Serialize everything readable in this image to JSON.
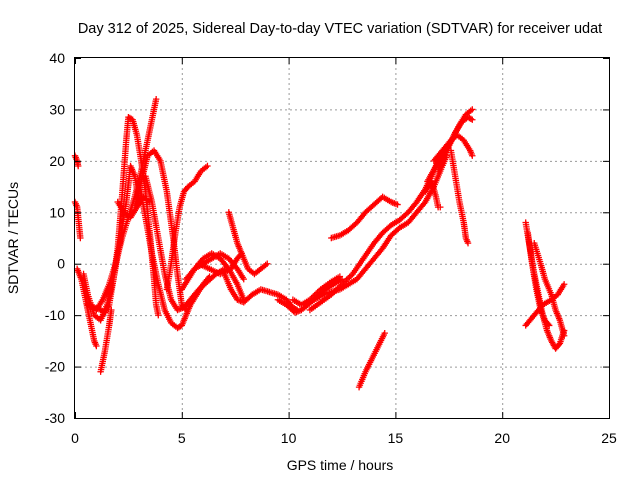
{
  "chart_data": {
    "type": "scatter",
    "title": "Day 312 of 2025, Sidereal Day-to-day VTEC variation (SDTVAR) for receiver udat",
    "xlabel": "GPS time / hours",
    "ylabel": "SDTVAR / TECUs",
    "xlim": [
      0,
      25
    ],
    "ylim": [
      -30,
      40
    ],
    "xticks": [
      "0",
      "5",
      "10",
      "15",
      "20",
      "25"
    ],
    "yticks": [
      "-30",
      "-20",
      "-10",
      "0",
      "10",
      "20",
      "30",
      "40"
    ],
    "grid": true,
    "marker": "+",
    "color": "#ff0000",
    "series": [
      {
        "points": [
          [
            0.0,
            21
          ],
          [
            0.1,
            20
          ],
          [
            0.15,
            19
          ]
        ]
      },
      {
        "points": [
          [
            0.0,
            12
          ],
          [
            0.1,
            11
          ],
          [
            0.15,
            9
          ],
          [
            0.2,
            7
          ],
          [
            0.25,
            5
          ]
        ]
      },
      {
        "points": [
          [
            0.1,
            -1
          ],
          [
            0.3,
            -3
          ],
          [
            0.5,
            -7
          ],
          [
            0.7,
            -11
          ],
          [
            0.9,
            -15
          ],
          [
            1.0,
            -16
          ]
        ]
      },
      {
        "points": [
          [
            0.4,
            -2
          ],
          [
            0.6,
            -6
          ],
          [
            0.9,
            -10
          ],
          [
            1.2,
            -11
          ],
          [
            1.5,
            -8
          ],
          [
            1.8,
            -3
          ],
          [
            2.1,
            4
          ],
          [
            2.4,
            12
          ],
          [
            2.6,
            19
          ],
          [
            2.8,
            17
          ],
          [
            3.0,
            12
          ]
        ]
      },
      {
        "points": [
          [
            0.6,
            -8
          ],
          [
            0.9,
            -8.5
          ],
          [
            1.2,
            -9
          ],
          [
            1.4,
            -9.5
          ],
          [
            1.6,
            -8
          ],
          [
            1.8,
            -3
          ],
          [
            2.0,
            3
          ],
          [
            2.2,
            13
          ],
          [
            2.4,
            24
          ],
          [
            2.5,
            28.5
          ],
          [
            2.7,
            28
          ],
          [
            2.9,
            25
          ],
          [
            3.1,
            20
          ],
          [
            3.3,
            14
          ],
          [
            3.5,
            6
          ],
          [
            3.7,
            -3
          ],
          [
            3.8,
            -8
          ],
          [
            3.9,
            -10
          ]
        ]
      },
      {
        "points": [
          [
            1.0,
            -9
          ],
          [
            1.3,
            -7
          ],
          [
            1.6,
            -4
          ],
          [
            1.9,
            0
          ],
          [
            2.2,
            5
          ],
          [
            2.5,
            9
          ],
          [
            2.8,
            13
          ],
          [
            3.1,
            18
          ],
          [
            3.3,
            22
          ],
          [
            3.5,
            26
          ],
          [
            3.7,
            30
          ],
          [
            3.8,
            32
          ]
        ]
      },
      {
        "points": [
          [
            1.2,
            -21
          ],
          [
            1.4,
            -17
          ],
          [
            1.6,
            -12
          ],
          [
            1.7,
            -9
          ]
        ]
      },
      {
        "points": [
          [
            2.0,
            12
          ],
          [
            2.3,
            10
          ],
          [
            2.6,
            9
          ],
          [
            2.9,
            11
          ],
          [
            3.2,
            13
          ],
          [
            3.5,
            12
          ]
        ]
      },
      {
        "points": [
          [
            2.8,
            11
          ],
          [
            3.1,
            16
          ],
          [
            3.4,
            21
          ],
          [
            3.7,
            22
          ],
          [
            4.0,
            20
          ],
          [
            4.3,
            14
          ],
          [
            4.6,
            5
          ],
          [
            4.8,
            -2
          ],
          [
            5.0,
            -8
          ],
          [
            5.2,
            -9
          ]
        ]
      },
      {
        "points": [
          [
            3.0,
            16
          ],
          [
            3.3,
            9
          ],
          [
            3.6,
            2
          ],
          [
            3.9,
            -4
          ],
          [
            4.2,
            -9
          ],
          [
            4.5,
            -11.5
          ],
          [
            4.8,
            -12.5
          ],
          [
            5.0,
            -12
          ],
          [
            5.2,
            -10
          ],
          [
            5.4,
            -8
          ],
          [
            5.7,
            -6
          ],
          [
            6.0,
            -4
          ],
          [
            6.3,
            -2.5
          ]
        ]
      },
      {
        "points": [
          [
            3.3,
            17
          ],
          [
            3.6,
            12
          ],
          [
            3.9,
            5
          ],
          [
            4.2,
            -2
          ],
          [
            4.5,
            -7
          ],
          [
            4.8,
            -9
          ],
          [
            5.1,
            -8.5
          ],
          [
            5.4,
            -7
          ],
          [
            5.8,
            -5
          ],
          [
            6.2,
            -3.5
          ],
          [
            6.6,
            -2
          ],
          [
            7.0,
            -1
          ]
        ]
      },
      {
        "points": [
          [
            4.3,
            -5
          ],
          [
            4.5,
            0
          ],
          [
            4.7,
            6
          ],
          [
            4.9,
            11
          ],
          [
            5.1,
            14
          ],
          [
            5.3,
            15
          ],
          [
            5.6,
            16
          ],
          [
            5.9,
            18
          ],
          [
            6.2,
            19
          ]
        ]
      },
      {
        "points": [
          [
            5.0,
            -5
          ],
          [
            5.3,
            -3
          ],
          [
            5.6,
            -1
          ],
          [
            6.0,
            0
          ],
          [
            6.4,
            1
          ],
          [
            6.8,
            2
          ],
          [
            7.2,
            1
          ],
          [
            7.6,
            -1
          ],
          [
            7.9,
            -3
          ]
        ]
      },
      {
        "points": [
          [
            5.2,
            -3
          ],
          [
            5.6,
            -1
          ],
          [
            6.0,
            1
          ],
          [
            6.4,
            2
          ],
          [
            6.8,
            1
          ],
          [
            7.2,
            -1
          ],
          [
            7.6,
            -4
          ],
          [
            7.9,
            -7
          ]
        ]
      },
      {
        "points": [
          [
            5.8,
            0
          ],
          [
            6.3,
            -1
          ],
          [
            6.8,
            -2
          ],
          [
            7.3,
            -1
          ],
          [
            7.6,
            1
          ],
          [
            7.8,
            2
          ]
        ]
      },
      {
        "points": [
          [
            7.2,
            10
          ],
          [
            7.4,
            7
          ],
          [
            7.6,
            4
          ],
          [
            7.8,
            2
          ],
          [
            8.1,
            -1
          ],
          [
            8.4,
            -2
          ],
          [
            8.7,
            -1
          ],
          [
            9.0,
            0
          ]
        ]
      },
      {
        "points": [
          [
            7.0,
            -2
          ],
          [
            7.3,
            -5
          ],
          [
            7.6,
            -7
          ],
          [
            7.9,
            -7.5
          ],
          [
            8.3,
            -6
          ],
          [
            8.7,
            -5
          ],
          [
            9.1,
            -5.5
          ],
          [
            9.5,
            -6
          ],
          [
            9.9,
            -7
          ],
          [
            10.2,
            -8.5
          ],
          [
            10.4,
            -9
          ]
        ]
      },
      {
        "points": [
          [
            9.5,
            -7
          ],
          [
            9.9,
            -8
          ],
          [
            10.3,
            -9.5
          ],
          [
            10.6,
            -9
          ],
          [
            10.9,
            -8
          ],
          [
            11.3,
            -6.5
          ],
          [
            11.7,
            -5
          ],
          [
            12.1,
            -4
          ],
          [
            12.5,
            -3
          ]
        ]
      },
      {
        "points": [
          [
            10.2,
            -7
          ],
          [
            10.6,
            -8
          ],
          [
            11.0,
            -7
          ],
          [
            11.5,
            -5
          ],
          [
            12.0,
            -3.5
          ],
          [
            12.4,
            -2.5
          ]
        ]
      },
      {
        "points": [
          [
            10.8,
            -8
          ],
          [
            11.2,
            -7
          ],
          [
            11.6,
            -6
          ],
          [
            12.0,
            -5.5
          ],
          [
            12.4,
            -5
          ],
          [
            12.8,
            -4
          ],
          [
            13.2,
            -3
          ],
          [
            13.6,
            -1
          ],
          [
            14.0,
            1
          ],
          [
            14.4,
            3
          ],
          [
            14.8,
            5.5
          ],
          [
            15.2,
            7
          ],
          [
            15.6,
            8
          ],
          [
            16.0,
            10
          ],
          [
            16.4,
            12
          ],
          [
            16.8,
            15
          ],
          [
            17.1,
            18
          ],
          [
            17.4,
            21
          ]
        ]
      },
      {
        "points": [
          [
            11.0,
            -9
          ],
          [
            11.5,
            -7.5
          ],
          [
            12.0,
            -6
          ],
          [
            12.5,
            -4
          ],
          [
            13.0,
            -2
          ],
          [
            13.5,
            1
          ],
          [
            14.0,
            4
          ],
          [
            14.4,
            6
          ],
          [
            14.8,
            7.5
          ],
          [
            15.2,
            8.5
          ],
          [
            15.6,
            10
          ],
          [
            16.0,
            12
          ],
          [
            16.4,
            14.5
          ],
          [
            16.8,
            18
          ],
          [
            17.1,
            21
          ]
        ]
      },
      {
        "points": [
          [
            12.0,
            5
          ],
          [
            12.4,
            5.5
          ],
          [
            12.8,
            6.5
          ],
          [
            13.2,
            8
          ],
          [
            13.6,
            10
          ],
          [
            14.0,
            11.5
          ],
          [
            14.4,
            13
          ],
          [
            14.8,
            12
          ],
          [
            15.1,
            11.5
          ]
        ]
      },
      {
        "points": [
          [
            16.8,
            20
          ],
          [
            17.2,
            22
          ],
          [
            17.6,
            24
          ],
          [
            17.9,
            25
          ],
          [
            18.2,
            24
          ],
          [
            18.5,
            22
          ],
          [
            18.6,
            21
          ]
        ]
      },
      {
        "points": [
          [
            16.4,
            14
          ],
          [
            16.7,
            16
          ],
          [
            16.9,
            13
          ],
          [
            17.0,
            11
          ],
          [
            17.1,
            11
          ]
        ]
      },
      {
        "points": [
          [
            16.5,
            16
          ],
          [
            16.9,
            19
          ],
          [
            17.3,
            21.5
          ],
          [
            17.7,
            24.5
          ],
          [
            18.0,
            27
          ],
          [
            18.3,
            29
          ],
          [
            18.6,
            30
          ]
        ]
      },
      {
        "points": [
          [
            17.0,
            18
          ],
          [
            17.4,
            22
          ],
          [
            17.8,
            25.5
          ],
          [
            18.1,
            27.5
          ],
          [
            18.4,
            28.5
          ],
          [
            18.6,
            28
          ]
        ]
      },
      {
        "points": [
          [
            17.6,
            22
          ],
          [
            17.8,
            17
          ],
          [
            18.0,
            12
          ],
          [
            18.2,
            8
          ],
          [
            18.3,
            5
          ],
          [
            18.4,
            4
          ]
        ]
      },
      {
        "points": [
          [
            13.3,
            -24
          ],
          [
            13.6,
            -21
          ],
          [
            13.9,
            -18.5
          ],
          [
            14.2,
            -16
          ],
          [
            14.5,
            -13.5
          ]
        ]
      },
      {
        "points": [
          [
            21.1,
            8
          ],
          [
            21.3,
            3
          ],
          [
            21.5,
            -2
          ],
          [
            21.7,
            -6
          ],
          [
            21.9,
            -10
          ],
          [
            22.1,
            -13
          ],
          [
            22.3,
            -15
          ],
          [
            22.5,
            -16.5
          ],
          [
            22.7,
            -15.5
          ],
          [
            22.9,
            -13
          ]
        ]
      },
      {
        "points": [
          [
            21.2,
            6
          ],
          [
            21.4,
            0
          ],
          [
            21.6,
            -5
          ],
          [
            21.8,
            -9
          ],
          [
            22.0,
            -11
          ],
          [
            22.2,
            -12
          ]
        ]
      },
      {
        "points": [
          [
            21.5,
            4
          ],
          [
            21.8,
            0
          ],
          [
            22.0,
            -3
          ],
          [
            22.3,
            -6
          ],
          [
            22.5,
            -9
          ],
          [
            22.7,
            -11
          ],
          [
            22.9,
            -14
          ]
        ]
      },
      {
        "points": [
          [
            21.1,
            -12
          ],
          [
            21.5,
            -10
          ],
          [
            21.9,
            -8
          ],
          [
            22.3,
            -7
          ],
          [
            22.6,
            -6
          ],
          [
            22.9,
            -4
          ]
        ]
      }
    ]
  }
}
